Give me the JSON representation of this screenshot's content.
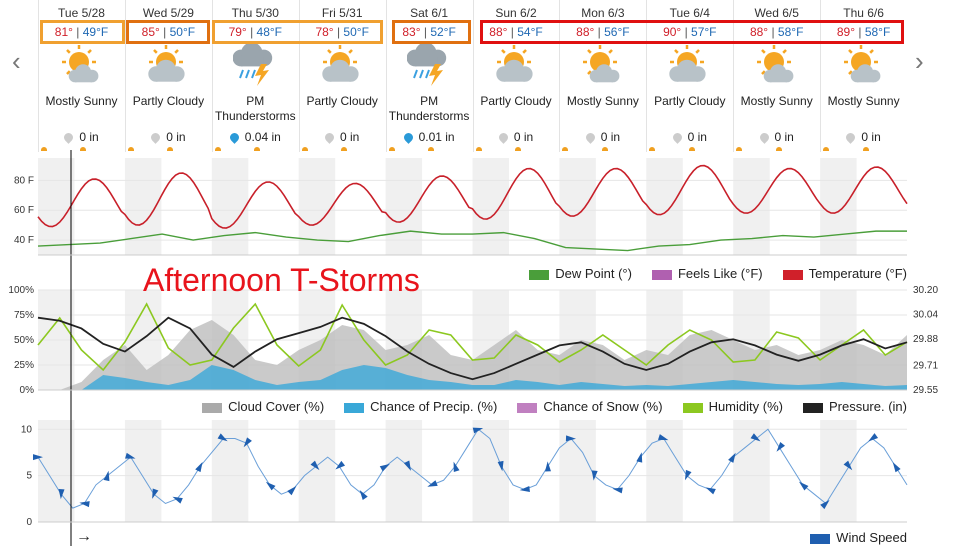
{
  "annotation": "Afternoon T-Storms",
  "colors": {
    "high": "#d0202a",
    "low": "#1f68b3",
    "orange_box": "#f0a030",
    "dark_orange_box": "#e07010",
    "red_box": "#e01010"
  },
  "days": [
    {
      "date": "Tue 5/28",
      "hi": "81°",
      "lo": "49°F",
      "cond": "Mostly Sunny",
      "icon": "mostly-sunny-icon",
      "precip": "0 in",
      "rain": false
    },
    {
      "date": "Wed 5/29",
      "hi": "85°",
      "lo": "50°F",
      "cond": "Partly Cloudy",
      "icon": "partly-cloudy-icon",
      "precip": "0 in",
      "rain": false
    },
    {
      "date": "Thu 5/30",
      "hi": "79°",
      "lo": "48°F",
      "cond": "PM Thunderstorms",
      "icon": "thunderstorm-icon",
      "precip": "0.04 in",
      "rain": true
    },
    {
      "date": "Fri 5/31",
      "hi": "78°",
      "lo": "50°F",
      "cond": "Partly Cloudy",
      "icon": "partly-cloudy-icon",
      "precip": "0 in",
      "rain": false
    },
    {
      "date": "Sat 6/1",
      "hi": "83°",
      "lo": "52°F",
      "cond": "PM Thunderstorms",
      "icon": "thunderstorm-icon",
      "precip": "0.01 in",
      "rain": true
    },
    {
      "date": "Sun 6/2",
      "hi": "88°",
      "lo": "54°F",
      "cond": "Partly Cloudy",
      "icon": "partly-cloudy-icon",
      "precip": "0 in",
      "rain": false
    },
    {
      "date": "Mon 6/3",
      "hi": "88°",
      "lo": "56°F",
      "cond": "Mostly Sunny",
      "icon": "mostly-sunny-icon",
      "precip": "0 in",
      "rain": false
    },
    {
      "date": "Tue 6/4",
      "hi": "90°",
      "lo": "57°F",
      "cond": "Partly Cloudy",
      "icon": "partly-cloudy-icon",
      "precip": "0 in",
      "rain": false
    },
    {
      "date": "Wed 6/5",
      "hi": "88°",
      "lo": "58°F",
      "cond": "Mostly Sunny",
      "icon": "mostly-sunny-icon",
      "precip": "0 in",
      "rain": false
    },
    {
      "date": "Thu 6/6",
      "hi": "89°",
      "lo": "58°F",
      "cond": "Mostly Sunny",
      "icon": "mostly-sunny-icon",
      "precip": "0 in",
      "rain": false
    }
  ],
  "chart_data": [
    {
      "type": "line",
      "ylim": [
        30,
        95
      ],
      "ytick_labels": [
        "80 F",
        "60 F",
        "40 F"
      ],
      "yticks": [
        80,
        60,
        40
      ],
      "legend": [
        "Dew Point (°)",
        "Feels Like (°F)",
        "Temperature (°F)"
      ],
      "legend_colors": [
        "#4a9e3a",
        "#b060b0",
        "#d0202a"
      ],
      "x_days": 10,
      "series": [
        {
          "name": "Temperature (°F)",
          "color": "#c8202a",
          "highs": [
            81,
            85,
            79,
            78,
            83,
            88,
            88,
            90,
            88,
            89
          ],
          "lows": [
            49,
            50,
            48,
            50,
            52,
            54,
            56,
            57,
            58,
            58
          ]
        },
        {
          "name": "Dew Point (°)",
          "color": "#4a9e3a",
          "values": [
            36,
            37,
            38,
            41,
            44,
            40,
            43,
            45,
            42,
            40,
            39,
            43,
            46,
            44,
            44,
            45,
            41,
            35,
            34,
            33,
            36,
            37,
            40,
            41,
            43,
            42,
            44,
            46,
            46
          ]
        }
      ]
    },
    {
      "type": "area",
      "ylim": [
        0,
        100
      ],
      "ytick_labels": [
        "100%",
        "75%",
        "50%",
        "25%",
        "0%"
      ],
      "yticks": [
        100,
        75,
        50,
        25,
        0
      ],
      "y2tick_labels": [
        "30.20",
        "30.04",
        "29.88",
        "29.71",
        "29.55"
      ],
      "y2ticks": [
        30.2,
        30.04,
        29.88,
        29.71,
        29.55
      ],
      "y2lim": [
        29.55,
        30.2
      ],
      "legend": [
        "Cloud Cover (%)",
        "Chance of Precip. (%)",
        "Chance of Snow (%)",
        "Humidity (%)",
        "Pressure. (in)"
      ],
      "legend_colors": [
        "#aaaaaa",
        "#39a8d8",
        "#c080c0",
        "#8cc820",
        "#222222"
      ],
      "series": [
        {
          "name": "Cloud Cover (%)",
          "color": "#bdbdbd",
          "values": [
            0,
            0,
            8,
            30,
            45,
            20,
            35,
            60,
            70,
            55,
            30,
            25,
            40,
            50,
            65,
            60,
            40,
            45,
            55,
            35,
            30,
            45,
            60,
            40,
            35,
            50,
            45,
            30,
            40,
            35,
            55,
            60,
            50,
            40,
            45,
            35,
            40,
            50,
            45,
            35,
            55
          ]
        },
        {
          "name": "Chance of Precip. (%)",
          "color": "#39a8d8",
          "values": [
            0,
            0,
            0,
            15,
            12,
            8,
            5,
            10,
            25,
            20,
            10,
            5,
            8,
            10,
            20,
            25,
            22,
            15,
            10,
            8,
            5,
            5,
            10,
            8,
            5,
            8,
            6,
            4,
            5,
            4,
            6,
            8,
            10,
            8,
            6,
            5,
            6,
            8,
            6,
            4,
            5
          ]
        },
        {
          "name": "Humidity (%)",
          "color": "#8cc820",
          "values": [
            45,
            72,
            40,
            20,
            48,
            86,
            42,
            25,
            30,
            62,
            86,
            45,
            24,
            40,
            85,
            50,
            25,
            35,
            60,
            55,
            30,
            32,
            55,
            45,
            28,
            40,
            55,
            40,
            25,
            45,
            60,
            50,
            28,
            30,
            58,
            52,
            30,
            45,
            60,
            35,
            48
          ]
        },
        {
          "name": "Pressure. (in)",
          "color": "#222222",
          "values": [
            30.02,
            30.0,
            29.95,
            29.85,
            29.8,
            29.9,
            30.02,
            29.95,
            29.78,
            29.7,
            29.8,
            29.88,
            29.92,
            29.96,
            30.02,
            29.98,
            29.9,
            29.8,
            29.72,
            29.66,
            29.62,
            29.66,
            29.72,
            29.78,
            29.84,
            29.86,
            29.8,
            29.72,
            29.68,
            29.72,
            29.8,
            29.86,
            29.88,
            29.84,
            29.78,
            29.74,
            29.78,
            29.84,
            29.88,
            29.82,
            29.86
          ]
        }
      ]
    },
    {
      "type": "line",
      "ylim": [
        0,
        11
      ],
      "ytick_labels": [
        "10",
        "5",
        "0"
      ],
      "yticks": [
        10,
        5,
        0
      ],
      "legend": [
        "Wind Speed"
      ],
      "legend_colors": [
        "#1f5fb0"
      ],
      "series": [
        {
          "name": "Wind Speed",
          "color": "#6a9fd8",
          "values": [
            7,
            5,
            3,
            1.5,
            2,
            4,
            5,
            6,
            7,
            5,
            3,
            2,
            2.5,
            4,
            6,
            7.5,
            9,
            9,
            8.5,
            6,
            4,
            3,
            3.5,
            5,
            6,
            7,
            6,
            4,
            3,
            4,
            6,
            7,
            6,
            5,
            4,
            4.5,
            6,
            8,
            10,
            9,
            6,
            4,
            3.5,
            4,
            6,
            8,
            9,
            7.5,
            5,
            4,
            3.5,
            5,
            7,
            8.5,
            9,
            7,
            5,
            4,
            3.5,
            5,
            7,
            8,
            9,
            10,
            8,
            6,
            4,
            3,
            2,
            4,
            6,
            8,
            9,
            8,
            6,
            4
          ]
        }
      ]
    }
  ],
  "nav": {
    "prev": "‹",
    "next": "›"
  },
  "footer_arrow": "→"
}
